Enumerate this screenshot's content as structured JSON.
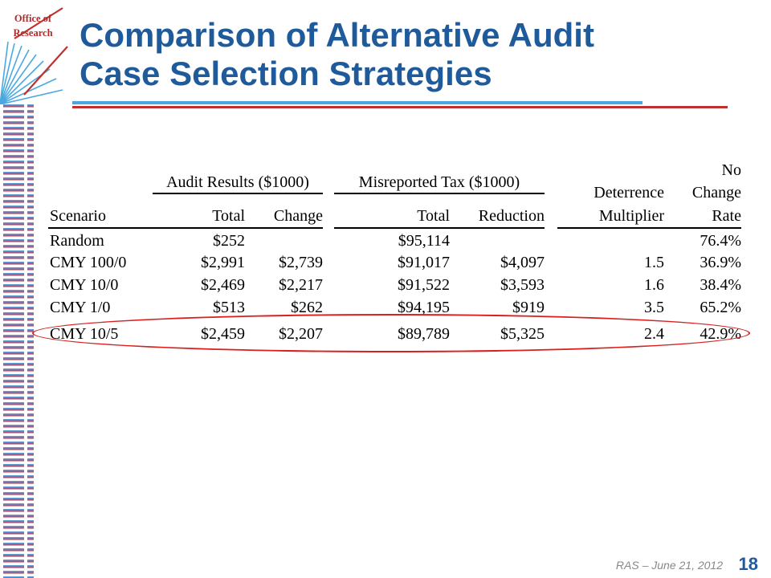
{
  "logo": {
    "line1": "Office of",
    "line2": "Research"
  },
  "title": {
    "line1": "Comparison of Alternative Audit",
    "line2": "Case Selection Strategies"
  },
  "table": {
    "group_headers": {
      "audit_results": "Audit Results ($1000)",
      "misreported_tax": "Misreported Tax ($1000)",
      "no": "No",
      "deterrence": "Deterrence",
      "change": "Change"
    },
    "columns": {
      "scenario": "Scenario",
      "audit_total": "Total",
      "audit_change": "Change",
      "tax_total": "Total",
      "reduction": "Reduction",
      "multiplier": "Multiplier",
      "rate": "Rate"
    },
    "rows": [
      {
        "scenario": "Random",
        "audit_total": "$252",
        "audit_change": "",
        "tax_total": "$95,114",
        "reduction": "",
        "multiplier": "",
        "rate": "76.4%"
      },
      {
        "scenario": "CMY 100/0",
        "audit_total": "$2,991",
        "audit_change": "$2,739",
        "tax_total": "$91,017",
        "reduction": "$4,097",
        "multiplier": "1.5",
        "rate": "36.9%"
      },
      {
        "scenario": "CMY 10/0",
        "audit_total": "$2,469",
        "audit_change": "$2,217",
        "tax_total": "$91,522",
        "reduction": "$3,593",
        "multiplier": "1.6",
        "rate": "38.4%"
      },
      {
        "scenario": "CMY 1/0",
        "audit_total": "$513",
        "audit_change": "$262",
        "tax_total": "$94,195",
        "reduction": "$919",
        "multiplier": "3.5",
        "rate": "65.2%"
      },
      {
        "scenario": "CMY 10/5",
        "audit_total": "$2,459",
        "audit_change": "$2,207",
        "tax_total": "$89,789",
        "reduction": "$5,325",
        "multiplier": "2.4",
        "rate": "42.9%"
      }
    ],
    "highlighted_row": "CMY 10/5",
    "highlight_color": "#d8211f"
  },
  "footer": {
    "text": "RAS – June 21, 2012",
    "page": "18"
  },
  "colors": {
    "title": "#1f5b9a",
    "accent_red": "#c0302e",
    "accent_blue": "#4aa8e0"
  }
}
